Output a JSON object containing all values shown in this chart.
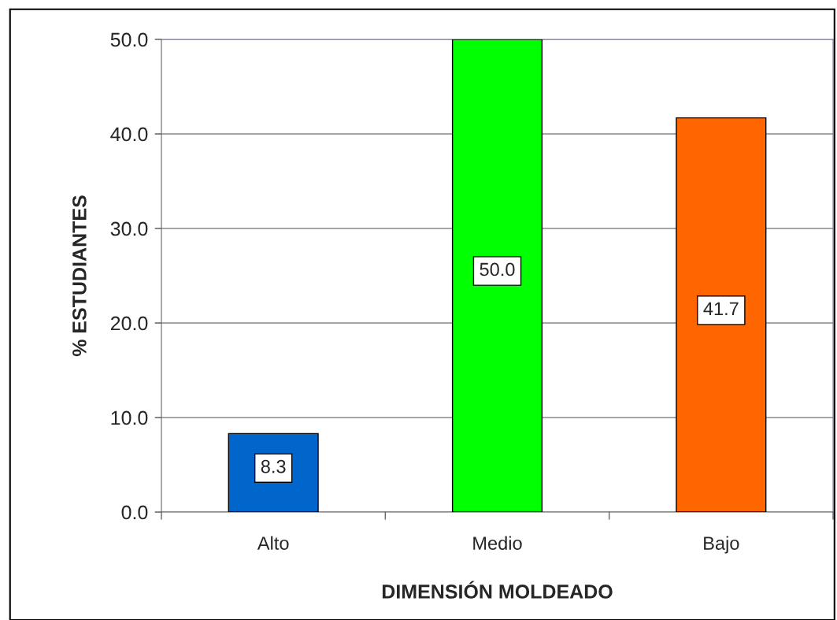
{
  "chart_data": {
    "type": "bar",
    "xlabel": "DIMENSIÓN MOLDEADO",
    "ylabel": "% ESTUDIANTES",
    "categories": [
      "Alto",
      "Medio",
      "Bajo"
    ],
    "values": [
      8.3,
      50.0,
      41.7
    ],
    "colors": [
      "#0066cc",
      "#00ff00",
      "#ff6600"
    ],
    "value_labels": [
      "8.3",
      "50.0",
      "41.7"
    ],
    "ylim": [
      0,
      50
    ],
    "yticks": [
      {
        "value": 0,
        "label": "0.0"
      },
      {
        "value": 10,
        "label": "10.0"
      },
      {
        "value": 20,
        "label": "20.0"
      },
      {
        "value": 30,
        "label": "30.0"
      },
      {
        "value": 40,
        "label": "40.0"
      },
      {
        "value": 50,
        "label": "50.0"
      }
    ],
    "grid": "y"
  }
}
